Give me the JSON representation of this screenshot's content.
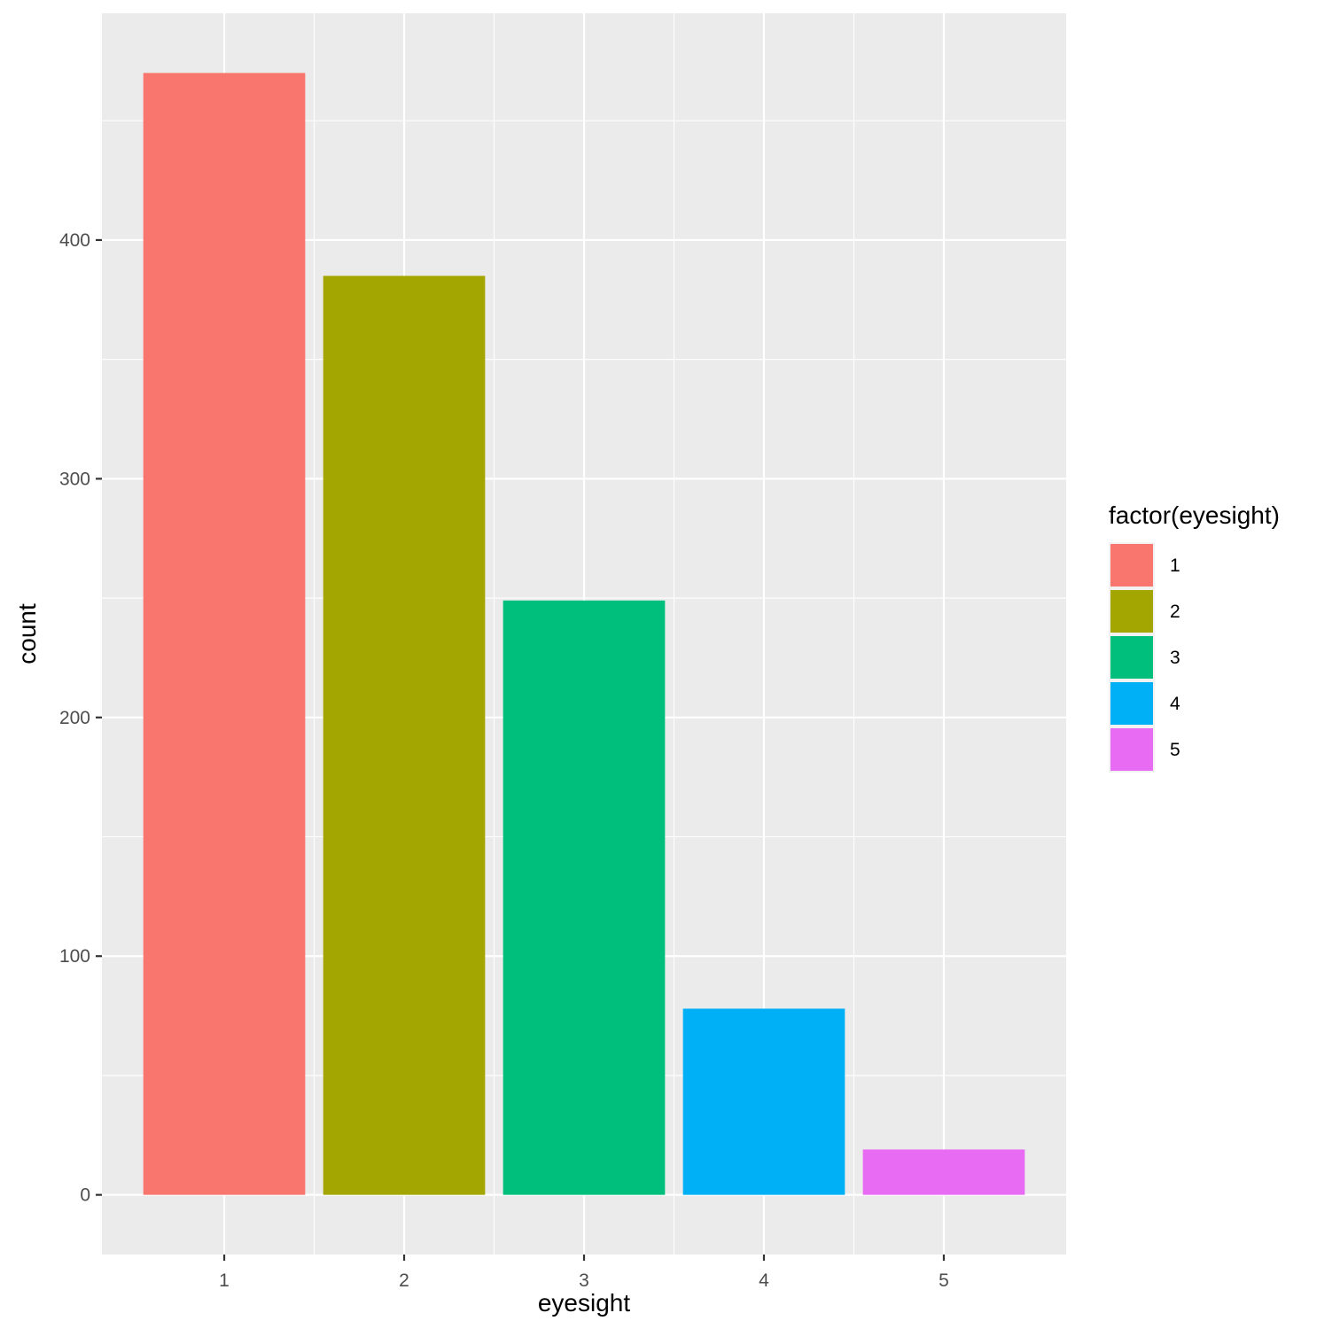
{
  "chart_data": {
    "type": "bar",
    "categories": [
      "1",
      "2",
      "3",
      "4",
      "5"
    ],
    "values": [
      470,
      385,
      249,
      78,
      19
    ],
    "colors": [
      "#F8766D",
      "#A3A500",
      "#00BF7D",
      "#00B0F6",
      "#E76BF3"
    ],
    "xlabel": "eyesight",
    "ylabel": "count",
    "ylim": [
      -25,
      495
    ],
    "xlim": [
      0.32,
      5.68
    ],
    "y_ticks": [
      0,
      100,
      200,
      300,
      400
    ],
    "y_tick_labels": [
      "0",
      "100",
      "200",
      "300",
      "400"
    ],
    "y_minor_ticks": [
      50,
      150,
      250,
      350,
      450
    ],
    "x_ticks": [
      1,
      2,
      3,
      4,
      5
    ],
    "x_minor_ticks": [
      1.5,
      2.5,
      3.5,
      4.5
    ],
    "grid": true,
    "legend": {
      "title": "factor(eyesight)",
      "position": "right",
      "labels": [
        "1",
        "2",
        "3",
        "4",
        "5"
      ]
    }
  }
}
